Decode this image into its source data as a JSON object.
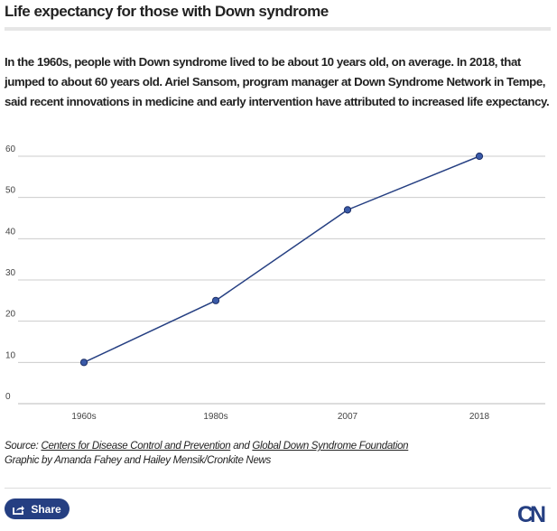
{
  "title": "Life expectancy for those with Down syndrome",
  "description": "In the 1960s, people with Down syndrome lived to be about 10 years old, on average. In 2018, that jumped to about 60 years old.  Ariel Sansom, program manager at Down Syndrome Network in Tempe, said recent innovations in medicine and early intervention have attributed to increased life expectancy.",
  "source": {
    "prefix": "Source: ",
    "link1": "Centers for Disease Control and Prevention",
    "and": " and ",
    "link2": "Global Down Syndrome Foundation",
    "credit": "Graphic by Amanda Fahey and Hailey Mensik/Cronkite News"
  },
  "share_label": "Share",
  "logo": "CN",
  "colors": {
    "line": "#253f82",
    "accent": "#253f82",
    "grid": "#cccccc"
  },
  "chart_data": {
    "type": "line",
    "categories": [
      "1960s",
      "1980s",
      "2007",
      "2018"
    ],
    "values": [
      10,
      25,
      47,
      60
    ],
    "yticks": [
      0,
      10,
      20,
      30,
      40,
      50,
      60
    ],
    "ylim": [
      0,
      60
    ],
    "grid": true,
    "title": "Life expectancy for those with Down syndrome"
  }
}
